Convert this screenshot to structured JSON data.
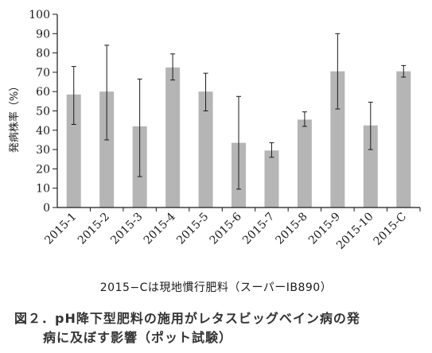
{
  "chart_data": {
    "type": "bar",
    "categories": [
      "2015-1",
      "2015-2",
      "2015-3",
      "2015-4",
      "2015-5",
      "2015-6",
      "2015-7",
      "2015-8",
      "2015-9",
      "2015-10",
      "2015-C"
    ],
    "values": [
      58.5,
      60,
      42,
      72.5,
      60,
      33.5,
      29.5,
      45.5,
      70.5,
      42.5,
      70.5
    ],
    "error_low": [
      43,
      35,
      16,
      66,
      50,
      9.5,
      26,
      42,
      51,
      30,
      67.5
    ],
    "error_high": [
      73,
      84,
      66.5,
      79.5,
      69.5,
      57.5,
      33.5,
      49.5,
      90,
      54.5,
      73.5
    ],
    "ylabel": "発病株率（%）",
    "ylim": [
      0,
      100
    ],
    "yticks": [
      0,
      10,
      20,
      30,
      40,
      50,
      60,
      70,
      80,
      90,
      100
    ],
    "bar_color": "#b5b5b5",
    "grid": false
  },
  "note": "2015−Cは現地慣行肥料（スーパーIB890）",
  "caption": {
    "line1": "図２．pH降下型肥料の施用がレタスビッグベイン病の発",
    "line2": "病に及ぼす影響（ポット試験）"
  }
}
